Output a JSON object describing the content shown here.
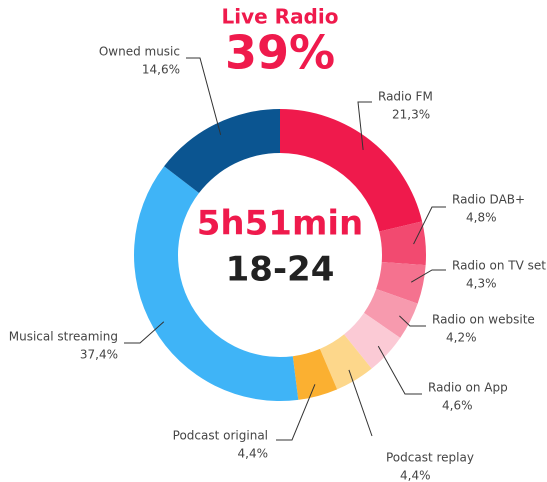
{
  "chart_data": {
    "type": "donut",
    "title": "Live Radio",
    "headline_value": 39,
    "headline_label": "39%",
    "center_texts": [
      "5h51min",
      "18-24"
    ],
    "categories": [
      "Radio FM",
      "Radio DAB+",
      "Radio on TV set",
      "Radio on website",
      "Radio on App",
      "Podcast replay",
      "Podcast original",
      "Musical streaming",
      "Owned music"
    ],
    "values": [
      21.3,
      4.8,
      4.3,
      4.2,
      4.6,
      4.4,
      4.4,
      37.4,
      14.6
    ],
    "value_labels": [
      "21,3%",
      "4,8%",
      "4,3%",
      "4,2%",
      "4,6%",
      "4,4%",
      "4,4%",
      "37,4%",
      "14,6%"
    ],
    "colors": [
      "#ef1a4c",
      "#f24a70",
      "#f5728f",
      "#f79aae",
      "#fbcad5",
      "#fdd78b",
      "#fbb031",
      "#3fb4f7",
      "#0b5591"
    ]
  }
}
